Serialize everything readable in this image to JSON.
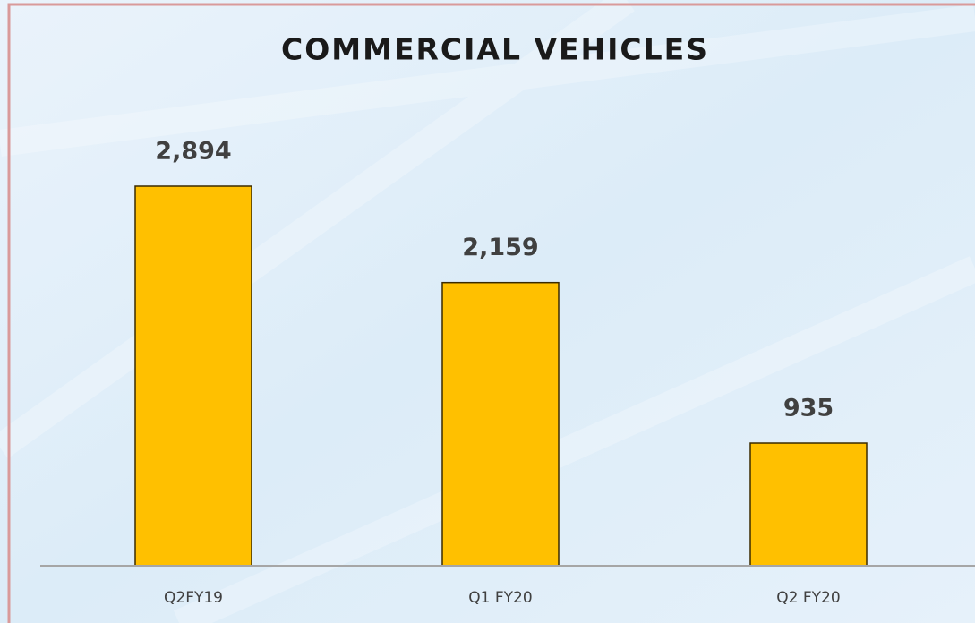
{
  "chart_data": {
    "type": "bar",
    "title": "COMMERCIAL VEHICLES",
    "categories": [
      "Q2FY19",
      "Q1 FY20",
      "Q2 FY20"
    ],
    "values": [
      2894,
      2159,
      935
    ],
    "value_labels": [
      "2,894",
      "2,159",
      "935"
    ],
    "color": "#ffc000"
  }
}
